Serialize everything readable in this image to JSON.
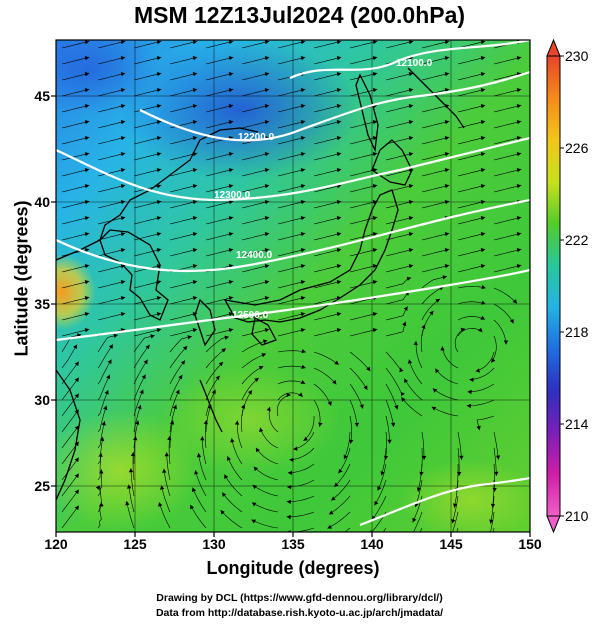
{
  "title": "MSM 12Z13Jul2024 (200.0hPa)",
  "axes": {
    "xlabel": "Longitude (degrees)",
    "ylabel": "Latitude  (degrees)",
    "xticks": [
      "120",
      "125",
      "130",
      "135",
      "140",
      "145",
      "150"
    ],
    "yticks": [
      "45",
      "40",
      "35",
      "30",
      "25"
    ]
  },
  "colorbar": {
    "ticks": [
      "230",
      "226",
      "222",
      "218",
      "214",
      "210"
    ],
    "range": [
      210,
      230
    ],
    "colors_top_to_bottom": [
      "#e8442a",
      "#f58a1a",
      "#f3c61a",
      "#c8e01c",
      "#53cc2a",
      "#27c79a",
      "#25b3e4",
      "#1f6fe0",
      "#2d30c0",
      "#7a1fb8",
      "#d01ea8",
      "#f15fc8"
    ]
  },
  "contours": [
    {
      "label": "12100.0"
    },
    {
      "label": "12200.0"
    },
    {
      "label": "12300.0"
    },
    {
      "label": "12400.0"
    },
    {
      "label": "12500.0"
    }
  ],
  "credits": {
    "line1": "Drawing by DCL (https://www.gfd-dennou.org/library/dcl/)",
    "line2": "Data from http://database.rish.kyoto-u.ac.jp/arch/jmadata/"
  },
  "chart_data": {
    "type": "heatmap",
    "title": "MSM 12Z13Jul2024 (200.0hPa)",
    "xlabel": "Longitude (degrees)",
    "ylabel": "Latitude  (degrees)",
    "xlim": [
      120,
      150
    ],
    "ylim": [
      22.4,
      47.6
    ],
    "value_range": [
      210,
      230
    ],
    "color_ticks": [
      230,
      226,
      222,
      218,
      214,
      210
    ],
    "geopotential_contours_m": [
      12100,
      12200,
      12300,
      12400,
      12500
    ],
    "grid": true
  }
}
